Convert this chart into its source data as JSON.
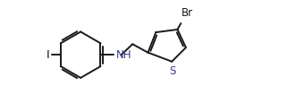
{
  "bg_color": "#ffffff",
  "bond_color": "#1a1a1a",
  "heteroatom_color": "#3a3a8a",
  "label_I": "I",
  "label_NH": "NH",
  "label_S": "S",
  "label_Br": "Br",
  "figsize": [
    3.31,
    1.24
  ],
  "dpi": 100,
  "xlim": [
    0,
    10.5
  ],
  "ylim": [
    0,
    3.75
  ]
}
